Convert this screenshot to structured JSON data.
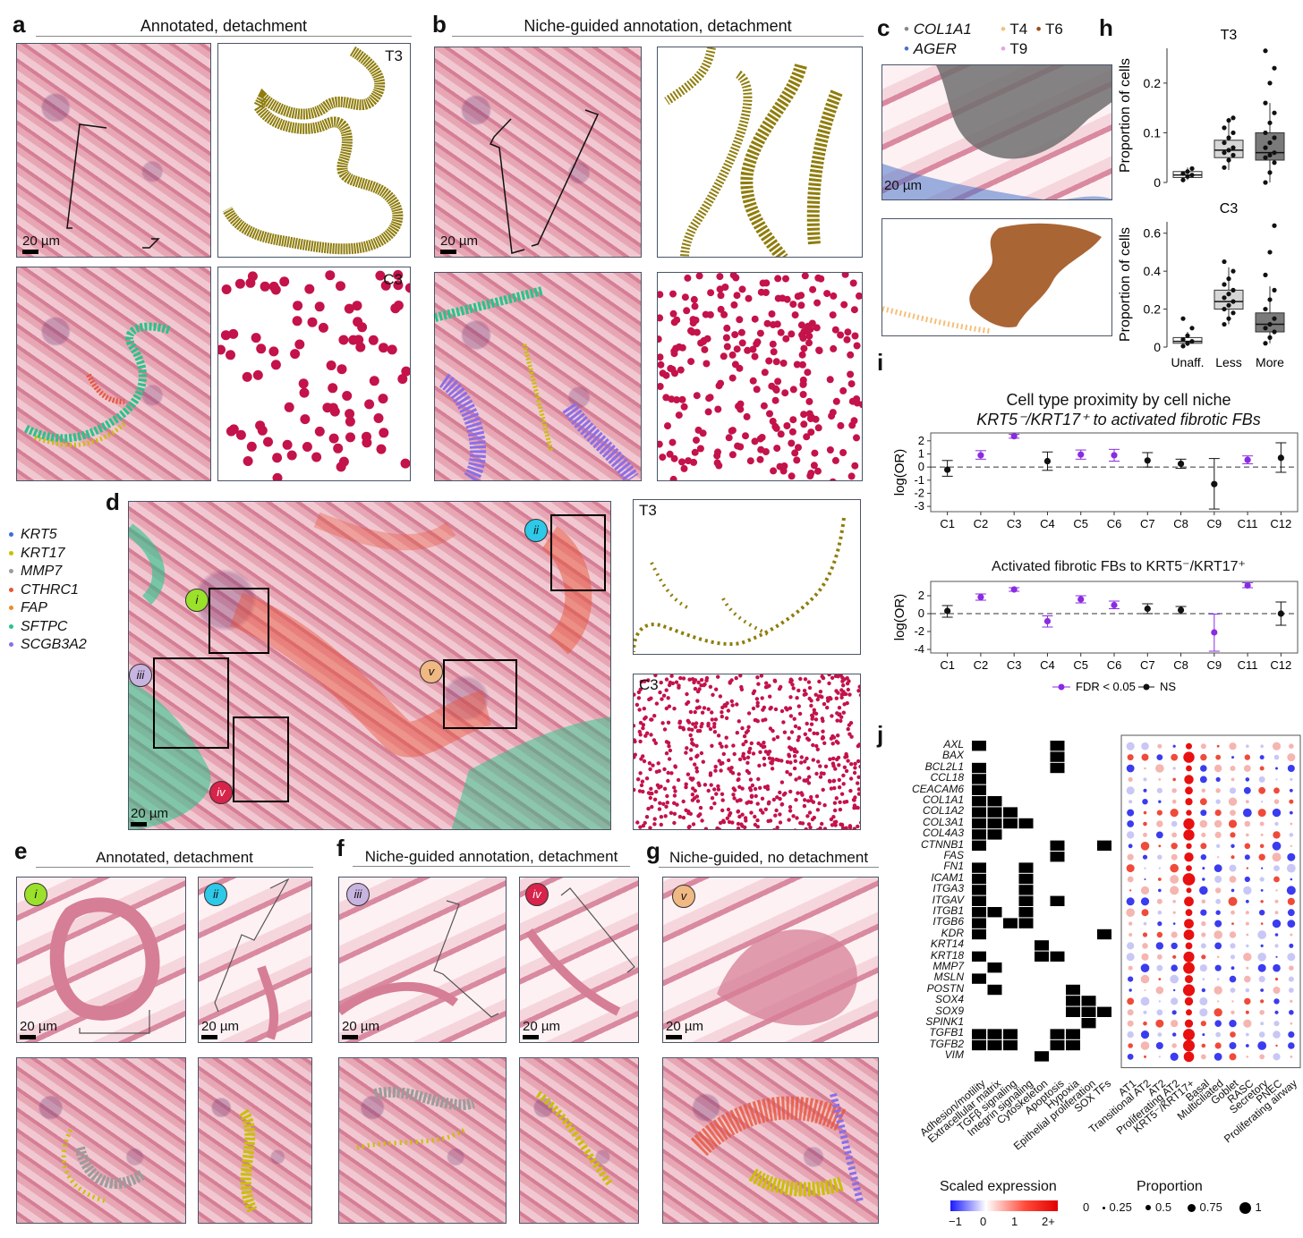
{
  "panel_labels": {
    "a": "a",
    "b": "b",
    "c": "c",
    "d": "d",
    "e": "e",
    "f": "f",
    "g": "g",
    "h": "h",
    "i": "i",
    "j": "j"
  },
  "titles": {
    "a": "Annotated, detachment",
    "b": "Niche-guided annotation, detachment",
    "e": "Annotated, detachment",
    "f": "Niche-guided annotation, detachment",
    "g": "Niche-guided, no detachment"
  },
  "scalebar": "20 µm",
  "niches": {
    "T3": "T3",
    "C3": "C3"
  },
  "colors": {
    "t3": "#8f7d0c",
    "c3": "#c4124a",
    "t6": "#9b4a12",
    "ager": "#4a74c9",
    "col1a1": "#888888",
    "t4": "#f4c07a",
    "t9": "#e6a3e6",
    "sig": "#8a2be2",
    "ns": "#111111"
  },
  "panel_c_legend": {
    "col1a1": "COL1A1",
    "ager": "AGER",
    "t4": "T4",
    "t9": "T9",
    "t6": "T6"
  },
  "gene_legend": [
    {
      "name": "KRT5",
      "color": "#3a6fd8"
    },
    {
      "name": "KRT17",
      "color": "#c9c000"
    },
    {
      "name": "MMP7",
      "color": "#9c9c9c"
    },
    {
      "name": "CTHRC1",
      "color": "#e8553a"
    },
    {
      "name": "FAP",
      "color": "#f08a2a"
    },
    {
      "name": "SFTPC",
      "color": "#27c48a"
    },
    {
      "name": "SCGB3A2",
      "color": "#8a6ee8"
    }
  ],
  "roman": [
    "i",
    "ii",
    "iii",
    "iv",
    "v"
  ],
  "roman_colors": {
    "i": "#9be02a",
    "ii": "#2ec8e8",
    "iii": "#c8b4e0",
    "iv": "#d8234a",
    "v": "#f0b882"
  },
  "chart_data": [
    {
      "type": "box",
      "id": "h_T3",
      "title": "T3",
      "ylabel": "Proportion of cells",
      "categories": [
        "Unaff.",
        "Less",
        "More"
      ],
      "ylim": [
        0,
        0.27
      ],
      "yticks": [
        0,
        0.1,
        0.2
      ],
      "boxes": [
        {
          "q1": 0.01,
          "median": 0.015,
          "q3": 0.022,
          "whisker_low": 0.005,
          "whisker_high": 0.03,
          "fill": "#ffffff"
        },
        {
          "q1": 0.05,
          "median": 0.065,
          "q3": 0.085,
          "whisker_low": 0.025,
          "whisker_high": 0.13,
          "fill": "#d6d6d6"
        },
        {
          "q1": 0.045,
          "median": 0.06,
          "q3": 0.1,
          "whisker_low": 0.0,
          "whisker_high": 0.16,
          "fill": "#7a7a7a"
        }
      ],
      "points": [
        [
          0.005,
          0.012,
          0.015,
          0.018,
          0.022,
          0.028
        ],
        [
          0.03,
          0.045,
          0.055,
          0.06,
          0.065,
          0.07,
          0.08,
          0.09,
          0.1,
          0.11,
          0.125,
          0.13
        ],
        [
          0.0,
          0.02,
          0.04,
          0.05,
          0.055,
          0.06,
          0.07,
          0.08,
          0.09,
          0.1,
          0.12,
          0.14,
          0.16,
          0.2,
          0.23,
          0.265
        ]
      ]
    },
    {
      "type": "box",
      "id": "h_C3",
      "title": "C3",
      "ylabel": "Proportion of cells",
      "categories": [
        "Unaff.",
        "Less",
        "More"
      ],
      "ylim": [
        0,
        0.66
      ],
      "yticks": [
        0,
        0.2,
        0.4,
        0.6
      ],
      "boxes": [
        {
          "q1": 0.02,
          "median": 0.03,
          "q3": 0.05,
          "whisker_low": 0.005,
          "whisker_high": 0.08,
          "fill": "#ffffff"
        },
        {
          "q1": 0.2,
          "median": 0.24,
          "q3": 0.3,
          "whisker_low": 0.12,
          "whisker_high": 0.42,
          "fill": "#d6d6d6"
        },
        {
          "q1": 0.08,
          "median": 0.12,
          "q3": 0.18,
          "whisker_low": 0.02,
          "whisker_high": 0.32,
          "fill": "#7a7a7a"
        }
      ],
      "points": [
        [
          0.005,
          0.02,
          0.03,
          0.04,
          0.06,
          0.1,
          0.15
        ],
        [
          0.12,
          0.15,
          0.18,
          0.2,
          0.22,
          0.24,
          0.26,
          0.28,
          0.3,
          0.33,
          0.36,
          0.4,
          0.45
        ],
        [
          0.02,
          0.05,
          0.08,
          0.1,
          0.12,
          0.15,
          0.2,
          0.25,
          0.3,
          0.38,
          0.5,
          0.64
        ]
      ]
    },
    {
      "type": "errorbar",
      "id": "i_top",
      "title": "Cell type proximity by cell niche",
      "subtitle": "KRT5⁻/KRT17⁺ to activated fibrotic FBs",
      "ylabel": "log(OR)",
      "ylim": [
        -3.4,
        2.6
      ],
      "yticks": [
        -3,
        -2,
        -1,
        0,
        1,
        2
      ],
      "categories": [
        "C1",
        "C2",
        "C3",
        "C4",
        "C5",
        "C6",
        "C7",
        "C8",
        "C9",
        "C11",
        "C12"
      ],
      "points": [
        {
          "value": -0.2,
          "lo": -0.7,
          "hi": 0.5,
          "sig": false
        },
        {
          "value": 0.9,
          "lo": 0.6,
          "hi": 1.25,
          "sig": true
        },
        {
          "value": 2.35,
          "lo": 2.2,
          "hi": 2.5,
          "sig": true
        },
        {
          "value": 0.45,
          "lo": -0.25,
          "hi": 1.15,
          "sig": false
        },
        {
          "value": 0.95,
          "lo": 0.6,
          "hi": 1.3,
          "sig": true
        },
        {
          "value": 0.9,
          "lo": 0.45,
          "hi": 1.35,
          "sig": true
        },
        {
          "value": 0.5,
          "lo": 0.0,
          "hi": 1.1,
          "sig": false
        },
        {
          "value": 0.25,
          "lo": -0.1,
          "hi": 0.6,
          "sig": false
        },
        {
          "value": -1.3,
          "lo": -3.2,
          "hi": 0.65,
          "sig": false
        },
        {
          "value": 0.55,
          "lo": 0.25,
          "hi": 0.85,
          "sig": true
        },
        {
          "value": 0.7,
          "lo": -0.4,
          "hi": 1.85,
          "sig": false
        }
      ]
    },
    {
      "type": "errorbar",
      "id": "i_bottom",
      "title": "Activated fibrotic FBs to KRT5⁻/KRT17⁺",
      "ylabel": "log(OR)",
      "ylim": [
        -4.4,
        3.6
      ],
      "yticks": [
        -4,
        -2,
        0,
        2
      ],
      "categories": [
        "C1",
        "C2",
        "C3",
        "C4",
        "C5",
        "C6",
        "C7",
        "C8",
        "C9",
        "C11",
        "C12"
      ],
      "points": [
        {
          "value": 0.3,
          "lo": -0.4,
          "hi": 0.9,
          "sig": false
        },
        {
          "value": 1.85,
          "lo": 1.5,
          "hi": 2.2,
          "sig": true
        },
        {
          "value": 2.7,
          "lo": 2.5,
          "hi": 2.9,
          "sig": true
        },
        {
          "value": -0.85,
          "lo": -1.5,
          "hi": -0.25,
          "sig": true
        },
        {
          "value": 1.6,
          "lo": 1.2,
          "hi": 2.0,
          "sig": true
        },
        {
          "value": 0.95,
          "lo": 0.55,
          "hi": 1.4,
          "sig": true
        },
        {
          "value": 0.55,
          "lo": 0.0,
          "hi": 1.1,
          "sig": false
        },
        {
          "value": 0.4,
          "lo": 0.0,
          "hi": 0.8,
          "sig": false
        },
        {
          "value": -2.1,
          "lo": -4.2,
          "hi": -0.05,
          "sig": true
        },
        {
          "value": 3.15,
          "lo": 2.9,
          "hi": 3.45,
          "sig": true
        },
        {
          "value": 0.0,
          "lo": -1.3,
          "hi": 1.3,
          "sig": false
        }
      ],
      "legend": {
        "sig": "FDR < 0.05",
        "ns": "NS"
      }
    },
    {
      "type": "heatmap",
      "id": "j",
      "genes": [
        "AXL",
        "BAX",
        "BCL2L1",
        "CCL18",
        "CEACAM6",
        "COL1A1",
        "COL1A2",
        "COL3A1",
        "COL4A3",
        "CTNNB1",
        "FAS",
        "FN1",
        "ICAM1",
        "ITGA3",
        "ITGAV",
        "ITGB1",
        "ITGB6",
        "KDR",
        "KRT14",
        "KRT18",
        "MMP7",
        "MSLN",
        "POSTN",
        "SOX4",
        "SOX9",
        "SPINK1",
        "TGFB1",
        "TGFB2",
        "VIM"
      ],
      "categories": [
        "Adhesion/motility",
        "Extracellular matrix",
        "TGFβ signaling",
        "Integrin signaling",
        "Cytoskeleton",
        "Apoptosis",
        "Hypoxia",
        "Epithelial proliferation",
        "SOX TFs"
      ],
      "membership": [
        [
          0,
          5
        ],
        [
          5
        ],
        [
          0,
          5
        ],
        [
          0
        ],
        [
          0
        ],
        [
          0,
          1
        ],
        [
          0,
          1,
          2
        ],
        [
          0,
          1,
          2,
          3
        ],
        [
          0,
          1
        ],
        [
          0,
          5,
          8
        ],
        [
          5
        ],
        [
          0,
          3
        ],
        [
          0,
          3
        ],
        [
          0,
          3
        ],
        [
          0,
          3,
          5
        ],
        [
          0,
          1,
          3
        ],
        [
          0,
          2,
          3
        ],
        [
          0,
          8
        ],
        [
          4
        ],
        [
          0,
          4,
          5
        ],
        [
          1
        ],
        [
          0
        ],
        [
          1,
          6
        ],
        [
          6,
          7
        ],
        [
          6,
          7,
          8
        ],
        [
          7
        ],
        [
          0,
          1,
          2,
          5,
          6
        ],
        [
          0,
          1,
          2,
          5,
          6
        ],
        [
          4
        ]
      ],
      "cell_types": [
        "AT1",
        "Transitional AT2",
        "AT2",
        "Proliferating AT2",
        "KRT5⁻/KRT17+",
        "Basal",
        "Multiciliated",
        "Goblet",
        "RASC",
        "Secretory",
        "PNEC",
        "Proliferating airway"
      ],
      "legend": {
        "expression_title": "Scaled expression",
        "expression_ticks": [
          "−1",
          "0",
          "1",
          "2+"
        ],
        "proportion_title": "Proportion",
        "proportion_ticks": [
          "0",
          "0.25",
          "0.5",
          "0.75",
          "1"
        ]
      }
    }
  ]
}
